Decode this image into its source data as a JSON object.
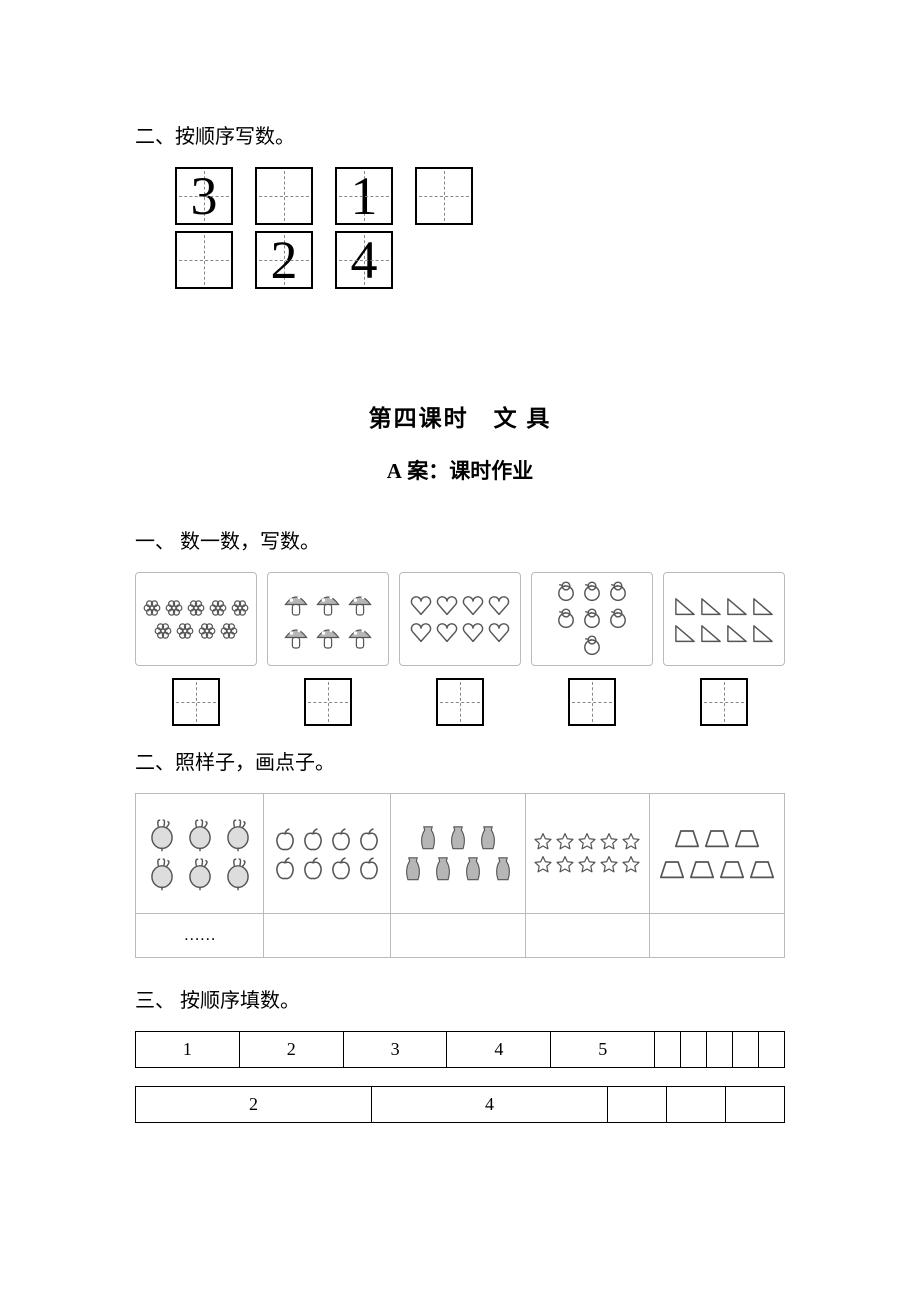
{
  "q2top": {
    "heading": "二、按顺序写数。",
    "box_size": 58,
    "num_fontsize": 54,
    "rows": [
      [
        "3",
        "",
        "1",
        ""
      ],
      [
        "",
        "2",
        "4"
      ]
    ]
  },
  "lesson": {
    "title": "第四课时　文 具",
    "case_prefix": "A",
    "case_rest": " 案：课时作业"
  },
  "q1": {
    "heading": "一、 数一数，写数。",
    "ans_box_size": 48,
    "cards": [
      {
        "kind": "flower",
        "rows": [
          5,
          4
        ],
        "size": 20,
        "color": "#555"
      },
      {
        "kind": "mushroom",
        "rows": [
          3,
          3
        ],
        "size": 30,
        "color": "#9a9a9a"
      },
      {
        "kind": "heart",
        "rows": [
          4,
          4
        ],
        "size": 24,
        "color": "#555"
      },
      {
        "kind": "chick",
        "rows": [
          3,
          3,
          1
        ],
        "size": 24,
        "color": "#555"
      },
      {
        "kind": "triangle",
        "rows": [
          4,
          4
        ],
        "size": 24,
        "color": "#555"
      }
    ]
  },
  "q2dots": {
    "heading": "二、照样子，画点子。",
    "cols": [
      {
        "kind": "radish",
        "rows": [
          3,
          3
        ],
        "size": 36,
        "ans": "……"
      },
      {
        "kind": "apple",
        "rows": [
          4,
          4
        ],
        "size": 26,
        "ans": ""
      },
      {
        "kind": "vase",
        "rows": [
          3,
          4
        ],
        "size": 28,
        "ans": ""
      },
      {
        "kind": "star",
        "rows": [
          5,
          5
        ],
        "size": 20,
        "ans": ""
      },
      {
        "kind": "trapezoid",
        "rows": [
          3,
          4
        ],
        "size": 28,
        "ans": ""
      }
    ]
  },
  "q3": {
    "heading": "三、 按顺序填数。",
    "table1": {
      "cols": 10,
      "values": [
        "1",
        "2",
        "3",
        "4",
        "5",
        "",
        "",
        "",
        "",
        ""
      ]
    },
    "table2": {
      "cols": 5,
      "values": [
        "2",
        "4",
        "",
        "",
        ""
      ]
    }
  },
  "colors": {
    "text": "#000000",
    "border_light": "#bbbbbb",
    "border_dark": "#000000",
    "gray_fill": "#b6b6b6",
    "dash": "#888888"
  }
}
